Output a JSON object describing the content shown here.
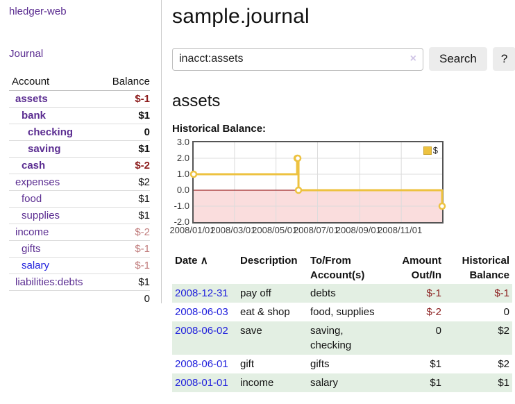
{
  "app": {
    "brand": "hledger-web",
    "nav_journal": "Journal"
  },
  "sidebar": {
    "header": {
      "account": "Account",
      "balance": "Balance"
    },
    "accounts": [
      {
        "name": "assets",
        "balance": "$-1",
        "depth": 0,
        "bold": true,
        "neg": "strong"
      },
      {
        "name": "bank",
        "balance": "$1",
        "depth": 1,
        "bold": true
      },
      {
        "name": "checking",
        "balance": "0",
        "depth": 2,
        "bold": true
      },
      {
        "name": "saving",
        "balance": "$1",
        "depth": 2,
        "bold": true
      },
      {
        "name": "cash",
        "balance": "$-2",
        "depth": 1,
        "bold": true,
        "neg": "strong"
      },
      {
        "name": "expenses",
        "balance": "$2",
        "depth": 0
      },
      {
        "name": "food",
        "balance": "$1",
        "depth": 1
      },
      {
        "name": "supplies",
        "balance": "$1",
        "depth": 1
      },
      {
        "name": "income",
        "balance": "$-2",
        "depth": 0,
        "neg": "soft"
      },
      {
        "name": "gifts",
        "balance": "$-1",
        "depth": 1,
        "neg": "soft"
      },
      {
        "name": "salary",
        "balance": "$-1",
        "depth": 1,
        "neg": "soft",
        "link_color": "blue"
      },
      {
        "name": "liabilities:debts",
        "balance": "$1",
        "depth": 0
      }
    ],
    "total": "0"
  },
  "header": {
    "title": "sample.journal"
  },
  "search": {
    "value": "inacct:assets",
    "clear_icon": "×",
    "button": "Search",
    "help_button": "?"
  },
  "account_page": {
    "heading": "assets"
  },
  "chart_data": {
    "type": "line",
    "title": "Historical Balance:",
    "step": true,
    "series": [
      {
        "name": "$",
        "color": "#edc240",
        "points": [
          [
            "2008-01-01",
            1
          ],
          [
            "2008-06-01",
            2
          ],
          [
            "2008-06-02",
            2
          ],
          [
            "2008-06-03",
            0
          ],
          [
            "2008-12-31",
            -1
          ]
        ]
      }
    ],
    "xlim": [
      "2008-01-01",
      "2008-12-31"
    ],
    "ylim": [
      -2,
      3
    ],
    "x_ticks": [
      "2008/01/01",
      "2008/03/01",
      "2008/05/01",
      "2008/07/01",
      "2008/09/01",
      "2008/11/01"
    ],
    "y_ticks": [
      "3.0",
      "2.0",
      "1.0",
      "0.0",
      "-1.0",
      "-2.0"
    ],
    "grid": true,
    "legend_position": "top-right",
    "negative_fill": "#fadddd",
    "zero_line_color": "#8b0000",
    "grid_color": "#dcdcdc"
  },
  "register": {
    "columns": {
      "date": "Date",
      "sort_icon": "∧",
      "description": "Description",
      "accounts_line1": "To/From",
      "accounts_line2": "Account(s)",
      "amount_line1": "Amount",
      "amount_line2": "Out/In",
      "balance_line1": "Historical",
      "balance_line2": "Balance"
    },
    "rows": [
      {
        "date": "2008-12-31",
        "description": "pay off",
        "accounts": "debts",
        "amount": "$-1",
        "amount_neg": true,
        "balance": "$-1",
        "balance_neg": true
      },
      {
        "date": "2008-06-03",
        "description": "eat & shop",
        "accounts": "food, supplies",
        "amount": "$-2",
        "amount_neg": true,
        "balance": "0"
      },
      {
        "date": "2008-06-02",
        "description": "save",
        "accounts": "saving, checking",
        "amount": "0",
        "balance": "$2"
      },
      {
        "date": "2008-06-01",
        "description": "gift",
        "accounts": "gifts",
        "amount": "$1",
        "balance": "$2"
      },
      {
        "date": "2008-01-01",
        "description": "income",
        "accounts": "salary",
        "amount": "$1",
        "balance": "$1"
      }
    ]
  },
  "colors": {
    "link_purple": "#5b2d91",
    "link_blue": "#2222dd",
    "negative_strong": "#8b1a1a",
    "negative_soft": "#c07b7b",
    "row_stripe_green": "#e3efe3",
    "chart_series": "#edc240"
  }
}
